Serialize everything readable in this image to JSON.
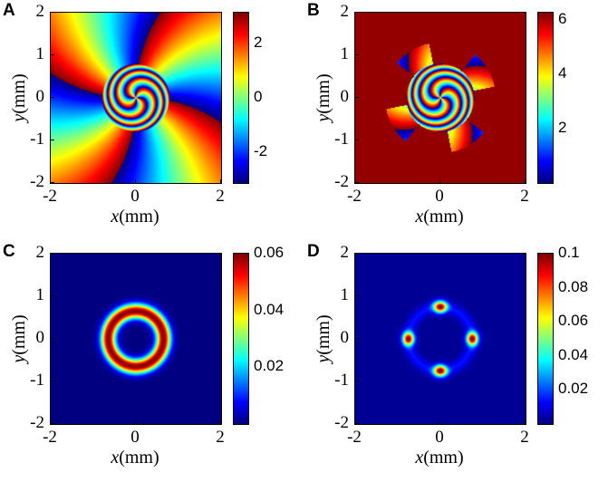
{
  "chart_data": [
    {
      "panel": "A",
      "type": "heatmap",
      "quantity": "phase",
      "xlabel_var": "x",
      "xlabel_unit": "(mm)",
      "ylabel_var": "y",
      "ylabel_unit": "(mm)",
      "xlim": [
        -2,
        2
      ],
      "ylim": [
        -2,
        2
      ],
      "xticks": [
        "-2",
        "0",
        "2"
      ],
      "yticks": [
        "2",
        "1",
        "0",
        "-1",
        "-2"
      ],
      "colorbar": {
        "min": -3.1416,
        "max": 3.1416,
        "ticks": [
          2,
          0,
          -2
        ],
        "tick_labels": [
          "2",
          "0",
          "-2"
        ]
      },
      "colormap": "jet"
    },
    {
      "panel": "B",
      "type": "heatmap",
      "quantity": "phase",
      "xlabel_var": "x",
      "xlabel_unit": "(mm)",
      "ylabel_var": "y",
      "ylabel_unit": "(mm)",
      "xlim": [
        -2,
        2
      ],
      "ylim": [
        -2,
        2
      ],
      "xticks": [
        "-2",
        "0",
        "2"
      ],
      "yticks": [
        "2",
        "1",
        "0",
        "-1",
        "-2"
      ],
      "colorbar": {
        "min": 0,
        "max": 6.2832,
        "ticks": [
          6,
          4,
          2
        ],
        "tick_labels": [
          "6",
          "4",
          "2"
        ]
      },
      "colormap": "jet"
    },
    {
      "panel": "C",
      "type": "heatmap",
      "quantity": "intensity",
      "xlabel_var": "x",
      "xlabel_unit": "(mm)",
      "ylabel_var": "y",
      "ylabel_unit": "(mm)",
      "xlim": [
        -2,
        2
      ],
      "ylim": [
        -2,
        2
      ],
      "xticks": [
        "-2",
        "0",
        "2"
      ],
      "yticks": [
        "2",
        "1",
        "0",
        "-1",
        "-2"
      ],
      "colorbar": {
        "min": 0,
        "max": 0.06,
        "ticks": [
          0.06,
          0.04,
          0.02
        ],
        "tick_labels": [
          "0.06",
          "0.04",
          "0.02"
        ]
      },
      "colormap": "jet"
    },
    {
      "panel": "D",
      "type": "heatmap",
      "quantity": "intensity",
      "xlabel_var": "x",
      "xlabel_unit": "(mm)",
      "ylabel_var": "y",
      "ylabel_unit": "(mm)",
      "xlim": [
        -2,
        2
      ],
      "ylim": [
        -2,
        2
      ],
      "xticks": [
        "-2",
        "0",
        "2"
      ],
      "yticks": [
        "2",
        "1",
        "0",
        "-1",
        "-2"
      ],
      "colorbar": {
        "min": 0,
        "max": 0.1,
        "ticks": [
          0.1,
          0.08,
          0.06,
          0.04,
          0.02
        ],
        "tick_labels": [
          "0.1",
          "0.08",
          "0.06",
          "0.04",
          "0.02"
        ]
      },
      "colormap": "jet"
    }
  ]
}
